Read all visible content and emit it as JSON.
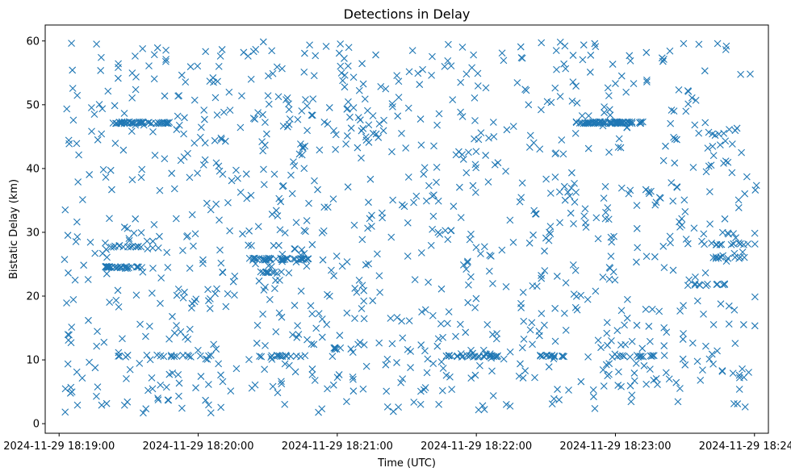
{
  "chart_data": {
    "type": "scatter",
    "title": "Detections in Delay",
    "xlabel": "Time (UTC)",
    "ylabel": "Bistatic Delay (km)",
    "xlim": [
      -6,
      306
    ],
    "ylim": [
      -1.5,
      62.5
    ],
    "marker": "x",
    "color": "#1f77b4",
    "xticks": [
      {
        "value": 0,
        "label": "2024-11-29 18:19:00"
      },
      {
        "value": 60,
        "label": "2024-11-29 18:20:00"
      },
      {
        "value": 120,
        "label": "2024-11-29 18:21:00"
      },
      {
        "value": 180,
        "label": "2024-11-29 18:22:00"
      },
      {
        "value": 240,
        "label": "2024-11-29 18:23:00"
      },
      {
        "value": 300,
        "label": "2024-11-29 18:24:00"
      }
    ],
    "yticks": [
      {
        "value": 0,
        "label": "0"
      },
      {
        "value": 10,
        "label": "10"
      },
      {
        "value": 20,
        "label": "20"
      },
      {
        "value": 30,
        "label": "30"
      },
      {
        "value": 40,
        "label": "40"
      },
      {
        "value": 50,
        "label": "50"
      },
      {
        "value": 60,
        "label": "60"
      }
    ],
    "x_range_s": [
      2,
      301
    ],
    "y_range_km": [
      1.5,
      60
    ],
    "random_detections": 1100,
    "seed": 20241129,
    "tracks": [
      {
        "x_start": 22,
        "x_end": 48,
        "y": 47.2,
        "count": 45
      },
      {
        "x_start": 223,
        "x_end": 252,
        "y": 47.2,
        "count": 70
      },
      {
        "x_start": 19,
        "x_end": 36,
        "y": 24.5,
        "count": 30
      },
      {
        "x_start": 23,
        "x_end": 38,
        "y": 27.8,
        "count": 12
      },
      {
        "x_start": 82,
        "x_end": 108,
        "y": 25.8,
        "count": 40
      },
      {
        "x_start": 86,
        "x_end": 101,
        "y": 23.7,
        "count": 12
      },
      {
        "x_start": 25,
        "x_end": 66,
        "y": 10.6,
        "count": 18
      },
      {
        "x_start": 86,
        "x_end": 108,
        "y": 10.6,
        "count": 14
      },
      {
        "x_start": 118,
        "x_end": 122,
        "y": 11.8,
        "count": 6
      },
      {
        "x_start": 165,
        "x_end": 190,
        "y": 10.6,
        "count": 24
      },
      {
        "x_start": 207,
        "x_end": 219,
        "y": 10.6,
        "count": 14
      },
      {
        "x_start": 240,
        "x_end": 258,
        "y": 10.6,
        "count": 14
      },
      {
        "x_start": 271,
        "x_end": 288,
        "y": 21.8,
        "count": 12
      },
      {
        "x_start": 281,
        "x_end": 300,
        "y": 26.0,
        "count": 10
      },
      {
        "x_start": 281,
        "x_end": 300,
        "y": 28.2,
        "count": 10
      }
    ]
  }
}
